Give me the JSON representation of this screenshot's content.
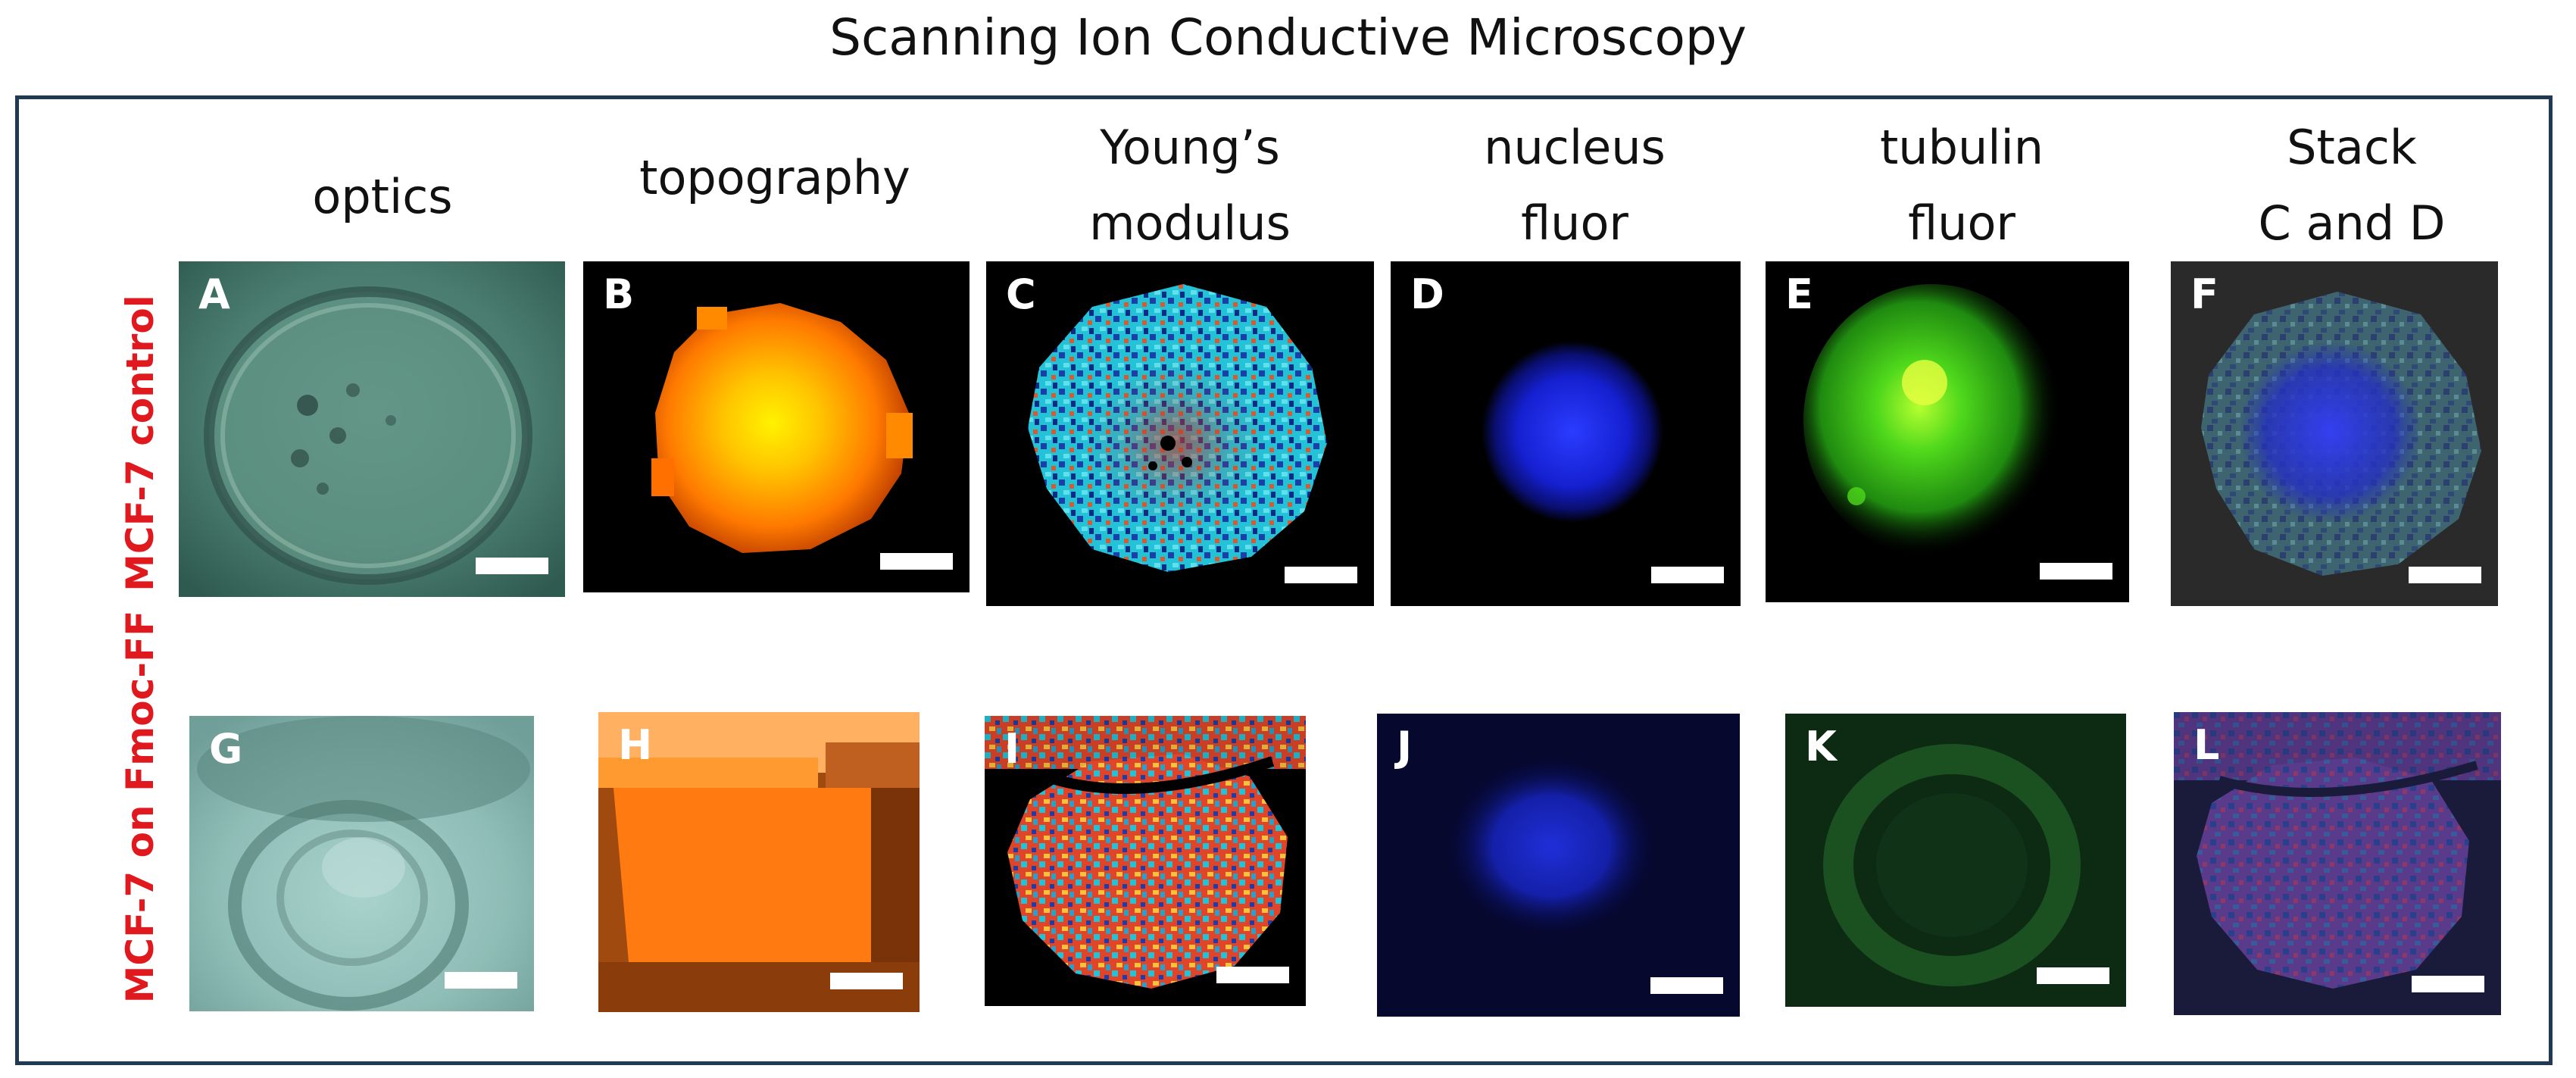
{
  "figure": {
    "title": "Scanning Ion Conductive Microscopy",
    "columns": [
      {
        "line1": "",
        "line2": "optics"
      },
      {
        "line1": "",
        "line2": "topography"
      },
      {
        "line1": "Young’s",
        "line2": "modulus"
      },
      {
        "line1": "nucleus",
        "line2": "fluor"
      },
      {
        "line1": "tubulin",
        "line2": "fluor"
      },
      {
        "line1": "Stack",
        "line2": "C and D"
      }
    ],
    "rows": [
      {
        "label": "MCF-7 control",
        "panels": [
          "A",
          "B",
          "C",
          "D",
          "E",
          "F"
        ]
      },
      {
        "label": "MCF-7 on Fmoc-FF",
        "panels": [
          "G",
          "H",
          "I",
          "J",
          "K",
          "L"
        ]
      }
    ],
    "colors": {
      "row_label": "#e0191e",
      "frame": "#1f3a52"
    }
  }
}
